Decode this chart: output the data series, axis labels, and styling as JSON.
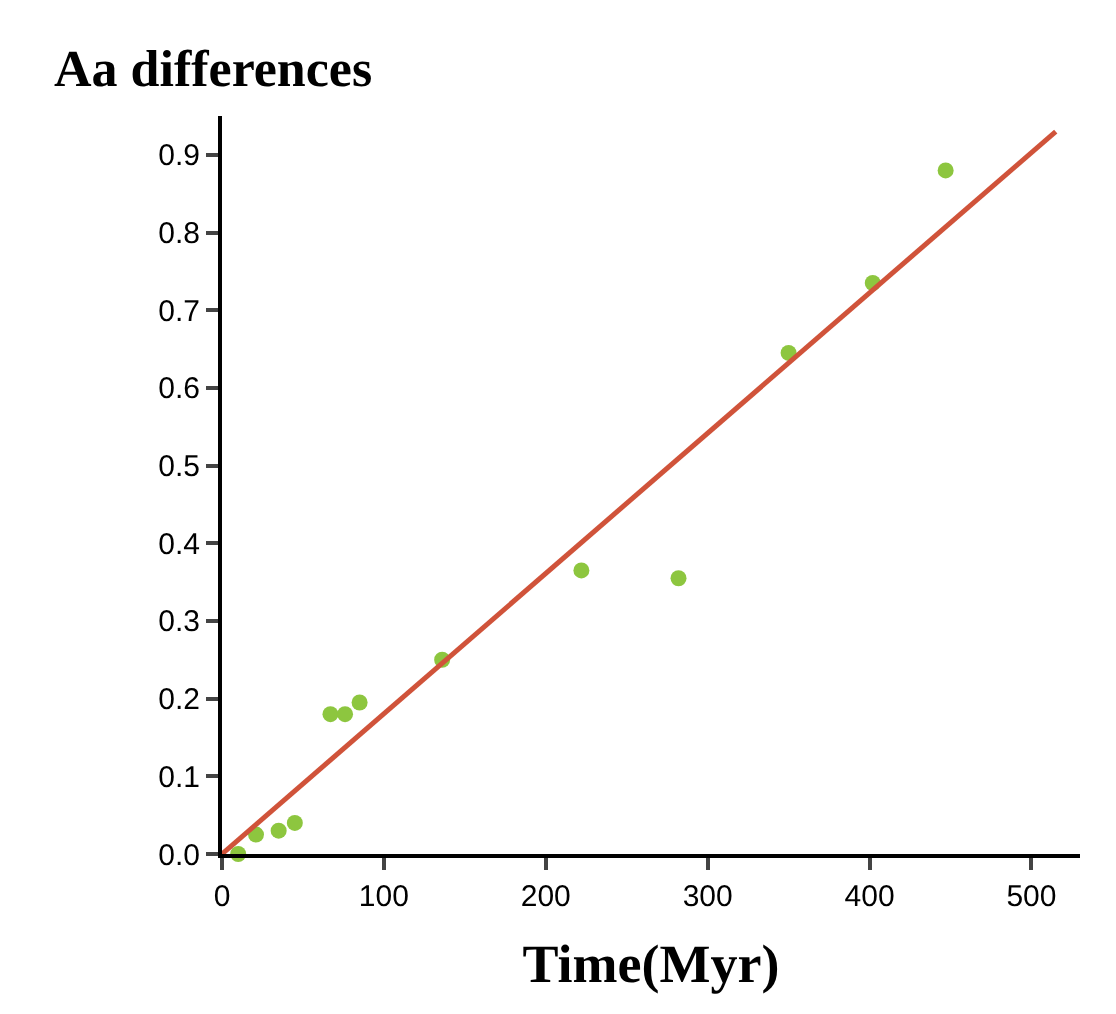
{
  "chart_data": {
    "type": "scatter",
    "xlabel": "Time(Myr)",
    "ylabel": "Aa differences",
    "xlim": [
      0,
      530
    ],
    "ylim": [
      0,
      0.95
    ],
    "xticks": [
      0,
      100,
      200,
      300,
      400,
      500
    ],
    "yticks": [
      {
        "value": 0,
        "label": "0.0"
      },
      0.1,
      0.2,
      0.3,
      0.4,
      0.5,
      0.6,
      0.7,
      0.8,
      0.9
    ],
    "grid": false,
    "legend": false,
    "marker": "circle",
    "series": [
      {
        "color": "#8dc63f",
        "x": [
          10,
          21,
          35,
          45,
          67,
          76,
          85,
          136,
          222,
          282,
          350,
          402,
          447
        ],
        "values": [
          0.0,
          0.025,
          0.03,
          0.04,
          0.18,
          0.18,
          0.195,
          0.25,
          0.365,
          0.355,
          0.645,
          0.735,
          0.88
        ]
      },
      {
        "type": "line",
        "color": "#d0533a",
        "line_style": "solid",
        "marker": "none",
        "x": [
          0,
          515
        ],
        "values": [
          0,
          0.93
        ]
      }
    ]
  }
}
